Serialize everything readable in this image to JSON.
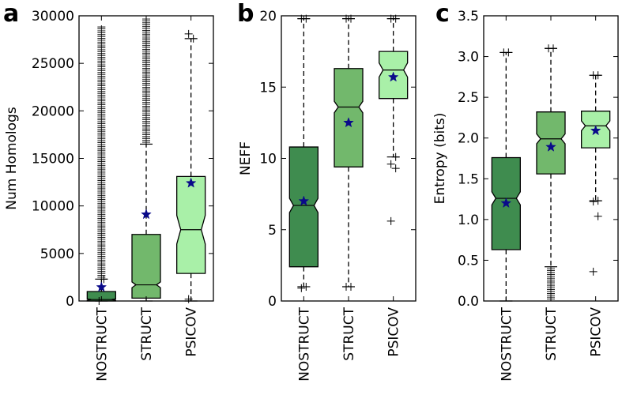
{
  "chart_data": [
    {
      "type": "box",
      "panel_label": "a",
      "ylabel": "Num Homologs",
      "ylim": [
        0,
        30000
      ],
      "yticks": [
        0,
        5000,
        10000,
        15000,
        20000,
        25000,
        30000
      ],
      "ytick_labels": [
        "0",
        "5000",
        "10000",
        "15000",
        "20000",
        "25000",
        "30000"
      ],
      "categories": [
        "NOSTRUCT",
        "STRUCT",
        "PSICOV"
      ],
      "colors": [
        "#3f8c4f",
        "#72b86c",
        "#a9f0a8"
      ],
      "boxes": [
        {
          "q1": 0,
          "median": 150,
          "q3": 1000,
          "whisker_low": 0,
          "whisker_high": 2300,
          "notch_low": 80,
          "notch_high": 220,
          "mean": 1450,
          "outliers_dense": [
            2300,
            29000
          ],
          "outliers": [
            0,
            2300
          ]
        },
        {
          "q1": 300,
          "median": 1700,
          "q3": 7000,
          "whisker_low": 0,
          "whisker_high": 16500,
          "notch_low": 1400,
          "notch_high": 2000,
          "mean": 9100,
          "outliers_dense": [
            16500,
            29700
          ],
          "outliers": []
        },
        {
          "q1": 2900,
          "median": 7500,
          "q3": 13100,
          "whisker_low": 0,
          "whisker_high": 27600,
          "notch_low": 6000,
          "notch_high": 9000,
          "mean": 12400,
          "outliers_dense": [],
          "outliers": [
            200,
            27600,
            28100
          ]
        }
      ]
    },
    {
      "type": "box",
      "panel_label": "b",
      "ylabel": "NEFF",
      "ylim": [
        0,
        20
      ],
      "yticks": [
        0,
        5,
        10,
        15,
        20
      ],
      "ytick_labels": [
        "0",
        "5",
        "10",
        "15",
        "20"
      ],
      "categories": [
        "NOSTRUCT",
        "STRUCT",
        "PSICOV"
      ],
      "colors": [
        "#3f8c4f",
        "#72b86c",
        "#a9f0a8"
      ],
      "boxes": [
        {
          "q1": 2.4,
          "median": 6.7,
          "q3": 10.8,
          "whisker_low": 1.0,
          "whisker_high": 19.8,
          "notch_low": 6.2,
          "notch_high": 7.2,
          "mean": 7.0,
          "outliers_dense": [],
          "outliers": [
            0.9,
            1.0,
            19.8,
            19.8
          ]
        },
        {
          "q1": 9.4,
          "median": 13.6,
          "q3": 16.3,
          "whisker_low": 1.0,
          "whisker_high": 19.8,
          "notch_low": 13.2,
          "notch_high": 14.0,
          "mean": 12.5,
          "outliers_dense": [],
          "outliers": [
            1.0,
            1.0,
            19.8,
            19.8
          ]
        },
        {
          "q1": 14.2,
          "median": 16.2,
          "q3": 17.5,
          "whisker_low": 10.1,
          "whisker_high": 19.8,
          "notch_low": 15.7,
          "notch_high": 16.7,
          "mean": 15.7,
          "outliers_dense": [],
          "outliers": [
            5.6,
            9.3,
            9.6,
            10.1,
            19.8,
            19.8
          ]
        }
      ]
    },
    {
      "type": "box",
      "panel_label": "c",
      "ylabel": "Entropy (bits)",
      "ylim": [
        0,
        3.5
      ],
      "yticks": [
        0,
        0.5,
        1.0,
        1.5,
        2.0,
        2.5,
        3.0,
        3.5
      ],
      "ytick_labels": [
        "0.0",
        "0.5",
        "1.0",
        "1.5",
        "2.0",
        "2.5",
        "3.0",
        "3.5"
      ],
      "categories": [
        "NOSTRUCT",
        "STRUCT",
        "PSICOV"
      ],
      "colors": [
        "#3f8c4f",
        "#72b86c",
        "#a9f0a8"
      ],
      "boxes": [
        {
          "q1": 0.63,
          "median": 1.26,
          "q3": 1.76,
          "whisker_low": 0.0,
          "whisker_high": 3.05,
          "notch_low": 1.18,
          "notch_high": 1.34,
          "mean": 1.2,
          "outliers_dense": [],
          "outliers": [
            3.05,
            3.05
          ]
        },
        {
          "q1": 1.56,
          "median": 1.99,
          "q3": 2.32,
          "whisker_low": 0.42,
          "whisker_high": 3.1,
          "notch_low": 1.93,
          "notch_high": 2.05,
          "mean": 1.89,
          "outliers_dense": [
            0.0,
            0.42
          ],
          "outliers": [
            3.1,
            3.1
          ]
        },
        {
          "q1": 1.88,
          "median": 2.15,
          "q3": 2.33,
          "whisker_low": 1.23,
          "whisker_high": 2.77,
          "notch_low": 2.09,
          "notch_high": 2.21,
          "mean": 2.09,
          "outliers_dense": [],
          "outliers": [
            0.36,
            1.04,
            1.22,
            1.23,
            2.77,
            2.77
          ]
        }
      ]
    }
  ]
}
